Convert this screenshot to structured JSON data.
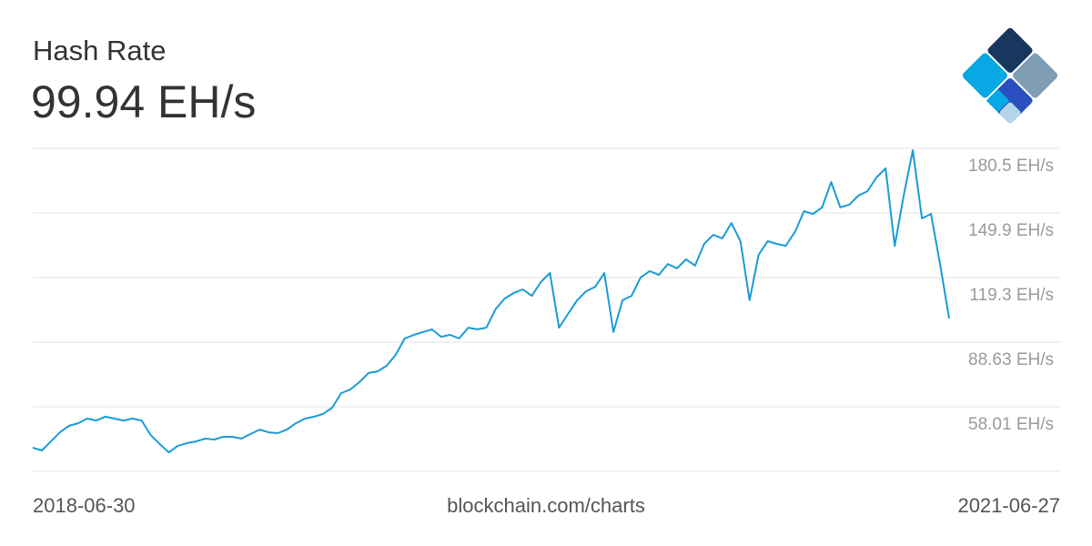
{
  "chart_data": {
    "type": "line",
    "title": "Hash Rate",
    "current": "99.94 EH/s",
    "x_labels": [
      "2018-06-30",
      "2021-06-27"
    ],
    "source": "blockchain.com/charts",
    "ylim": [
      27.39,
      180.5
    ],
    "yticks": [
      {
        "value": 58.01,
        "label": "58.01 EH/s"
      },
      {
        "value": 88.63,
        "label": "88.63 EH/s"
      },
      {
        "value": 119.3,
        "label": "119.3 EH/s"
      },
      {
        "value": 149.9,
        "label": "149.9 EH/s"
      },
      {
        "value": 180.5,
        "label": "180.5 EH/s"
      }
    ],
    "grid": true,
    "series": [
      {
        "color": "#1a9bd7",
        "values": [
          38.6,
          37.3,
          41.6,
          45.9,
          49.0,
          50.2,
          52.4,
          51.5,
          53.3,
          52.4,
          51.5,
          52.4,
          51.5,
          44.6,
          40.3,
          36.4,
          39.5,
          40.8,
          41.6,
          42.9,
          42.5,
          43.8,
          43.8,
          42.9,
          45.1,
          47.2,
          45.9,
          45.5,
          47.2,
          50.2,
          52.4,
          53.3,
          54.6,
          57.6,
          64.5,
          66.2,
          69.7,
          74.0,
          74.8,
          77.4,
          82.6,
          90.4,
          92.1,
          93.4,
          94.7,
          91.2,
          92.1,
          90.4,
          95.5,
          94.7,
          95.5,
          104.2,
          109.3,
          111.9,
          113.6,
          110.6,
          117.1,
          121.4,
          95.5,
          102.0,
          108.5,
          112.8,
          114.9,
          121.4,
          93.4,
          108.5,
          110.6,
          119.3,
          122.3,
          120.5,
          125.7,
          123.6,
          127.9,
          124.9,
          135.2,
          139.5,
          137.8,
          145.1,
          136.5,
          108.5,
          130.0,
          136.5,
          135.2,
          134.3,
          140.8,
          150.7,
          149.4,
          152.5,
          164.5,
          152.5,
          153.8,
          158.1,
          160.2,
          166.7,
          171.0,
          134.3,
          158.1,
          179.6,
          147.3,
          149.4,
          125.7,
          99.94
        ]
      }
    ]
  }
}
